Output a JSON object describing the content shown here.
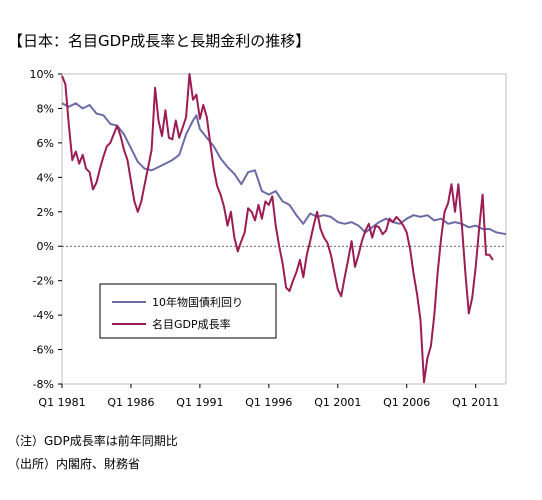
{
  "title": "【日本：名目GDP成長率と長期金利の推移】",
  "notes": [
    "（注）GDP成長率は前年同期比",
    "（出所）内閣府、財務省"
  ],
  "chart_data": {
    "type": "line",
    "x_start": 1981,
    "x_end": 2013.2,
    "ylim": [
      -8,
      10
    ],
    "yticks": [
      -8,
      -6,
      -4,
      -2,
      0,
      2,
      4,
      6,
      8,
      10
    ],
    "ytick_labels": [
      "-8%",
      "-6%",
      "-4%",
      "-2%",
      "0%",
      "2%",
      "4%",
      "6%",
      "8%",
      "10%"
    ],
    "xticks": [
      1981,
      1986,
      1991,
      1996,
      2001,
      2006,
      2011
    ],
    "xtick_labels": [
      "Q1 1981",
      "Q1 1986",
      "Q1 1991",
      "Q1 1996",
      "Q1 2001",
      "Q1 2006",
      "Q1 2011"
    ],
    "legend_position": "center-left",
    "series": [
      {
        "name": "10年物国債利回り",
        "color": "#6b6ba8",
        "points": [
          [
            1981.0,
            8.3
          ],
          [
            1981.5,
            8.1
          ],
          [
            1982.0,
            8.3
          ],
          [
            1982.5,
            8.0
          ],
          [
            1983.0,
            8.2
          ],
          [
            1983.5,
            7.7
          ],
          [
            1984.0,
            7.6
          ],
          [
            1984.5,
            7.1
          ],
          [
            1985.0,
            7.0
          ],
          [
            1985.5,
            6.5
          ],
          [
            1986.0,
            5.7
          ],
          [
            1986.5,
            4.9
          ],
          [
            1987.0,
            4.5
          ],
          [
            1987.5,
            4.4
          ],
          [
            1988.0,
            4.6
          ],
          [
            1988.5,
            4.8
          ],
          [
            1989.0,
            5.0
          ],
          [
            1989.5,
            5.3
          ],
          [
            1990.0,
            6.5
          ],
          [
            1990.5,
            7.3
          ],
          [
            1990.75,
            7.6
          ],
          [
            1991.0,
            6.8
          ],
          [
            1991.5,
            6.3
          ],
          [
            1992.0,
            5.8
          ],
          [
            1992.5,
            5.1
          ],
          [
            1993.0,
            4.6
          ],
          [
            1993.5,
            4.2
          ],
          [
            1994.0,
            3.6
          ],
          [
            1994.5,
            4.3
          ],
          [
            1995.0,
            4.4
          ],
          [
            1995.5,
            3.2
          ],
          [
            1996.0,
            3.0
          ],
          [
            1996.5,
            3.2
          ],
          [
            1997.0,
            2.6
          ],
          [
            1997.5,
            2.4
          ],
          [
            1998.0,
            1.8
          ],
          [
            1998.5,
            1.3
          ],
          [
            1999.0,
            1.9
          ],
          [
            1999.5,
            1.7
          ],
          [
            2000.0,
            1.8
          ],
          [
            2000.5,
            1.7
          ],
          [
            2001.0,
            1.4
          ],
          [
            2001.5,
            1.3
          ],
          [
            2002.0,
            1.4
          ],
          [
            2002.5,
            1.2
          ],
          [
            2003.0,
            0.8
          ],
          [
            2003.5,
            1.1
          ],
          [
            2004.0,
            1.4
          ],
          [
            2004.5,
            1.6
          ],
          [
            2005.0,
            1.4
          ],
          [
            2005.5,
            1.3
          ],
          [
            2006.0,
            1.6
          ],
          [
            2006.5,
            1.8
          ],
          [
            2007.0,
            1.7
          ],
          [
            2007.5,
            1.8
          ],
          [
            2008.0,
            1.5
          ],
          [
            2008.5,
            1.6
          ],
          [
            2009.0,
            1.3
          ],
          [
            2009.5,
            1.4
          ],
          [
            2010.0,
            1.3
          ],
          [
            2010.5,
            1.1
          ],
          [
            2011.0,
            1.2
          ],
          [
            2011.5,
            1.0
          ],
          [
            2012.0,
            1.0
          ],
          [
            2012.5,
            0.8
          ],
          [
            2013.2,
            0.7
          ]
        ]
      },
      {
        "name": "名目GDP成長率",
        "color": "#9c1c55",
        "points": [
          [
            1981.0,
            9.9
          ],
          [
            1981.25,
            9.4
          ],
          [
            1981.5,
            7.0
          ],
          [
            1981.75,
            5.0
          ],
          [
            1982.0,
            5.5
          ],
          [
            1982.25,
            4.8
          ],
          [
            1982.5,
            5.3
          ],
          [
            1982.75,
            4.5
          ],
          [
            1983.0,
            4.3
          ],
          [
            1983.25,
            3.3
          ],
          [
            1983.5,
            3.7
          ],
          [
            1983.75,
            4.5
          ],
          [
            1984.0,
            5.2
          ],
          [
            1984.25,
            5.8
          ],
          [
            1984.5,
            6.0
          ],
          [
            1984.75,
            6.5
          ],
          [
            1985.0,
            7.0
          ],
          [
            1985.25,
            6.4
          ],
          [
            1985.5,
            5.6
          ],
          [
            1985.75,
            5.0
          ],
          [
            1986.0,
            3.8
          ],
          [
            1986.25,
            2.6
          ],
          [
            1986.5,
            2.0
          ],
          [
            1986.75,
            2.6
          ],
          [
            1987.0,
            3.6
          ],
          [
            1987.25,
            4.6
          ],
          [
            1987.5,
            5.6
          ],
          [
            1987.75,
            9.2
          ],
          [
            1988.0,
            7.3
          ],
          [
            1988.25,
            6.4
          ],
          [
            1988.5,
            7.9
          ],
          [
            1988.75,
            6.3
          ],
          [
            1989.0,
            6.2
          ],
          [
            1989.25,
            7.3
          ],
          [
            1989.5,
            6.3
          ],
          [
            1989.75,
            6.9
          ],
          [
            1990.0,
            7.5
          ],
          [
            1990.25,
            10.0
          ],
          [
            1990.5,
            8.5
          ],
          [
            1990.75,
            8.8
          ],
          [
            1991.0,
            7.4
          ],
          [
            1991.25,
            8.2
          ],
          [
            1991.5,
            7.5
          ],
          [
            1991.75,
            6.0
          ],
          [
            1992.0,
            4.5
          ],
          [
            1992.25,
            3.5
          ],
          [
            1992.5,
            3.0
          ],
          [
            1992.75,
            2.3
          ],
          [
            1993.0,
            1.2
          ],
          [
            1993.25,
            2.0
          ],
          [
            1993.5,
            0.5
          ],
          [
            1993.75,
            -0.3
          ],
          [
            1994.0,
            0.3
          ],
          [
            1994.25,
            0.8
          ],
          [
            1994.5,
            2.2
          ],
          [
            1994.75,
            2.0
          ],
          [
            1995.0,
            1.5
          ],
          [
            1995.25,
            2.4
          ],
          [
            1995.5,
            1.6
          ],
          [
            1995.75,
            2.6
          ],
          [
            1996.0,
            2.4
          ],
          [
            1996.25,
            2.9
          ],
          [
            1996.5,
            1.2
          ],
          [
            1996.75,
            0.0
          ],
          [
            1997.0,
            -1.0
          ],
          [
            1997.25,
            -2.4
          ],
          [
            1997.5,
            -2.6
          ],
          [
            1997.75,
            -2.0
          ],
          [
            1998.0,
            -1.5
          ],
          [
            1998.25,
            -0.8
          ],
          [
            1998.5,
            -1.8
          ],
          [
            1998.75,
            -0.5
          ],
          [
            1999.0,
            0.3
          ],
          [
            1999.25,
            1.2
          ],
          [
            1999.5,
            2.0
          ],
          [
            1999.75,
            1.0
          ],
          [
            2000.0,
            0.5
          ],
          [
            2000.25,
            0.2
          ],
          [
            2000.5,
            -0.5
          ],
          [
            2000.75,
            -1.5
          ],
          [
            2001.0,
            -2.5
          ],
          [
            2001.25,
            -2.9
          ],
          [
            2001.5,
            -1.8
          ],
          [
            2001.75,
            -0.8
          ],
          [
            2002.0,
            0.3
          ],
          [
            2002.25,
            -1.2
          ],
          [
            2002.5,
            -0.5
          ],
          [
            2002.75,
            0.3
          ],
          [
            2003.0,
            0.9
          ],
          [
            2003.25,
            1.3
          ],
          [
            2003.5,
            0.5
          ],
          [
            2003.75,
            1.2
          ],
          [
            2004.0,
            1.1
          ],
          [
            2004.25,
            0.7
          ],
          [
            2004.5,
            0.9
          ],
          [
            2004.75,
            1.6
          ],
          [
            2005.0,
            1.4
          ],
          [
            2005.25,
            1.7
          ],
          [
            2005.5,
            1.5
          ],
          [
            2005.75,
            1.2
          ],
          [
            2006.0,
            0.8
          ],
          [
            2006.25,
            -0.2
          ],
          [
            2006.5,
            -1.6
          ],
          [
            2006.75,
            -2.8
          ],
          [
            2007.0,
            -4.3
          ],
          [
            2007.25,
            -7.9
          ],
          [
            2007.5,
            -6.5
          ],
          [
            2007.75,
            -5.8
          ],
          [
            2008.0,
            -4.0
          ],
          [
            2008.25,
            -1.5
          ],
          [
            2008.5,
            0.5
          ],
          [
            2008.75,
            2.0
          ],
          [
            2009.0,
            2.5
          ],
          [
            2009.25,
            3.6
          ],
          [
            2009.5,
            2.0
          ],
          [
            2009.75,
            3.6
          ],
          [
            2010.0,
            1.2
          ],
          [
            2010.25,
            -1.5
          ],
          [
            2010.5,
            -3.9
          ],
          [
            2010.75,
            -3.0
          ],
          [
            2011.0,
            -1.2
          ],
          [
            2011.25,
            1.0
          ],
          [
            2011.5,
            3.0
          ],
          [
            2011.75,
            -0.5
          ],
          [
            2012.0,
            -0.5
          ],
          [
            2012.25,
            -0.8
          ]
        ]
      }
    ]
  }
}
